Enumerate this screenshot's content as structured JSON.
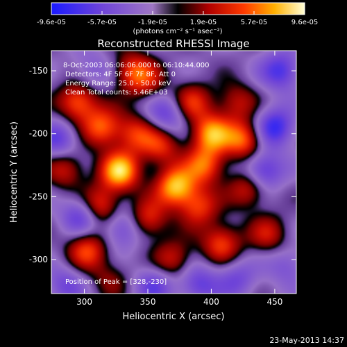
{
  "chart_data": {
    "type": "heatmap",
    "title": "Reconstructed RHESSI Image",
    "xlabel": "Heliocentric X (arcsec)",
    "ylabel": "Heliocentric Y (arcsec)",
    "xlim": [
      274,
      467
    ],
    "ylim": [
      -327,
      -134
    ],
    "x_ticks": [
      300,
      350,
      400,
      450
    ],
    "y_ticks": [
      -150,
      -200,
      -250,
      -300
    ],
    "colorbar": {
      "range": [
        -9.6e-05,
        9.6e-05
      ],
      "tick_labels": [
        "-9.6e-05",
        "-5.7e-05",
        "-1.9e-05",
        "1.9e-05",
        "5.7e-05",
        "9.6e-05"
      ],
      "unit_label": "(photons cm⁻² s⁻¹ asec⁻²)"
    },
    "annotations": [
      "8-Oct-2003 06:06:06.000 to 06:10:44.000",
      "Detectors: 4F 5F 6F 7F 8F, Att 0",
      "Energy Range: 25.0 - 50.0 keV",
      "Clean    Total counts: 5.46E+03"
    ],
    "peak_label": "Position of Peak = [328,-230]",
    "peak": [
      328,
      -230
    ],
    "footer": "23-May-2013 14:37",
    "blobs": [
      {
        "x": 328,
        "y": -230,
        "v": 1.0
      },
      {
        "x": 295,
        "y": -175,
        "v": 0.75
      },
      {
        "x": 314,
        "y": -195,
        "v": 0.7
      },
      {
        "x": 340,
        "y": -200,
        "v": 0.55
      },
      {
        "x": 372,
        "y": -242,
        "v": 0.95
      },
      {
        "x": 400,
        "y": -200,
        "v": 0.85
      },
      {
        "x": 395,
        "y": -225,
        "v": 0.7
      },
      {
        "x": 426,
        "y": -205,
        "v": 0.75
      },
      {
        "x": 312,
        "y": -258,
        "v": 0.7
      },
      {
        "x": 350,
        "y": -268,
        "v": 0.6
      },
      {
        "x": 408,
        "y": -287,
        "v": 0.65
      },
      {
        "x": 302,
        "y": -292,
        "v": 0.65
      },
      {
        "x": 430,
        "y": -243,
        "v": 0.6
      },
      {
        "x": 338,
        "y": -150,
        "v": 0.6
      },
      {
        "x": 385,
        "y": -175,
        "v": 0.55
      },
      {
        "x": 360,
        "y": -210,
        "v": 0.55
      },
      {
        "x": 285,
        "y": -228,
        "v": 0.5
      },
      {
        "x": 370,
        "y": -300,
        "v": 0.5
      },
      {
        "x": 445,
        "y": -280,
        "v": 0.45
      },
      {
        "x": 390,
        "y": -258,
        "v": 0.6
      },
      {
        "x": 320,
        "y": -315,
        "v": 0.3
      },
      {
        "x": 350,
        "y": -160,
        "v": 0.35
      },
      {
        "x": 420,
        "y": -175,
        "v": 0.45
      },
      {
        "x": 455,
        "y": -150,
        "v": -0.6
      },
      {
        "x": 440,
        "y": -230,
        "v": -0.7
      },
      {
        "x": 450,
        "y": -195,
        "v": -0.7
      },
      {
        "x": 298,
        "y": -265,
        "v": -0.6
      },
      {
        "x": 330,
        "y": -275,
        "v": -0.5
      },
      {
        "x": 365,
        "y": -185,
        "v": -0.5
      },
      {
        "x": 280,
        "y": -205,
        "v": -0.5
      },
      {
        "x": 355,
        "y": -320,
        "v": -0.45
      },
      {
        "x": 390,
        "y": -320,
        "v": -0.5
      },
      {
        "x": 285,
        "y": -320,
        "v": -0.4
      },
      {
        "x": 420,
        "y": -315,
        "v": -0.4
      },
      {
        "x": 305,
        "y": -150,
        "v": -0.3
      },
      {
        "x": 460,
        "y": -305,
        "v": -0.35
      }
    ]
  }
}
